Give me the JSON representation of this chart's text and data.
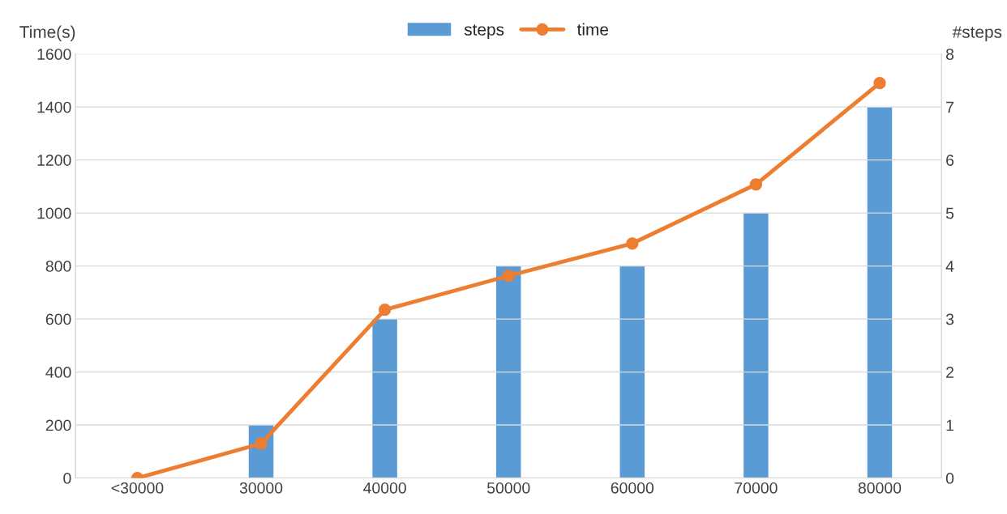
{
  "chart_data": {
    "type": "bar",
    "ylabel": "Time(s)",
    "y2label": "#steps",
    "categories": [
      "<30000",
      "30000",
      "40000",
      "50000",
      "60000",
      "70000",
      "80000"
    ],
    "series": [
      {
        "name": "steps",
        "axis": "y2",
        "color": "#5b9bd5",
        "values": [
          0,
          1,
          3,
          4,
          4,
          5,
          7
        ]
      },
      {
        "name": "time",
        "type": "line",
        "color": "#ed7d31",
        "marker": "circle",
        "values": [
          0,
          130,
          635,
          763,
          885,
          1108,
          1490
        ]
      }
    ],
    "ylim": [
      0,
      1600
    ],
    "yticks": [
      0,
      200,
      400,
      600,
      800,
      1000,
      1200,
      1400,
      1600
    ],
    "y2lim": [
      0,
      8
    ],
    "y2ticks": [
      0,
      1,
      2,
      3,
      4,
      5,
      6,
      7,
      8
    ],
    "grid": "y",
    "legend": "top"
  }
}
